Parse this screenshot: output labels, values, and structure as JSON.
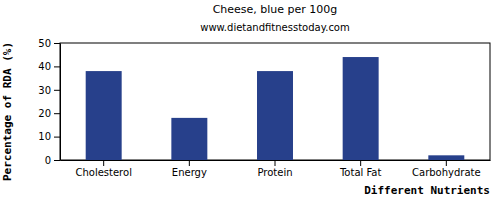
{
  "chart_data": {
    "type": "bar",
    "title": "Cheese, blue per 100g",
    "subtitle": "www.dietandfitnesstoday.com",
    "x_label": "Different Nutrients",
    "y_label": "Percentage of RDA (%)",
    "categories": [
      "Cholesterol",
      "Energy",
      "Protein",
      "Total Fat",
      "Carbohydrate"
    ],
    "values": [
      38,
      18,
      38,
      44,
      2
    ],
    "color": "#27408b",
    "ylim": [
      0,
      50
    ],
    "yticks": [
      0,
      10,
      20,
      30,
      40,
      50
    ],
    "grid": false
  }
}
